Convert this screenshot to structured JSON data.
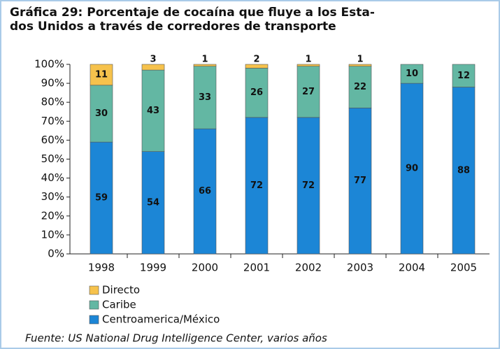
{
  "chart_data": {
    "type": "stacked-bar",
    "title": [
      "Gráfica 29: Porcentaje de cocaína que fluye a los Esta-",
      "dos Unidos a través de corredores de transporte"
    ],
    "categories": [
      "1998",
      "1999",
      "2000",
      "2001",
      "2002",
      "2003",
      "2004",
      "2005"
    ],
    "series": [
      {
        "name": "Centroamerica/México",
        "color": "#1c86d6",
        "values": [
          59,
          54,
          66,
          72,
          72,
          77,
          90,
          88
        ]
      },
      {
        "name": "Caribe",
        "color": "#63b7a3",
        "values": [
          30,
          43,
          33,
          26,
          27,
          22,
          10,
          12
        ]
      },
      {
        "name": "Directo",
        "color": "#f6c24c",
        "values": [
          11,
          3,
          1,
          2,
          1,
          1,
          null,
          null
        ]
      }
    ],
    "legend_order": [
      2,
      1,
      0
    ],
    "ylim": [
      0,
      100
    ],
    "yticks": [
      {
        "value": 0,
        "label": "0%"
      },
      {
        "value": 10,
        "label": "10%"
      },
      {
        "value": 20,
        "label": "20%"
      },
      {
        "value": 30,
        "label": "30%"
      },
      {
        "value": 40,
        "label": "40%"
      },
      {
        "value": 50,
        "label": "50%"
      },
      {
        "value": 60,
        "label": "60%"
      },
      {
        "value": 70,
        "label": "70%"
      },
      {
        "value": 80,
        "label": "80%"
      },
      {
        "value": 90,
        "label": "90%"
      },
      {
        "value": 100,
        "label": "100%"
      }
    ],
    "source": "Fuente: US National Drug Intelligence Center, varios años"
  }
}
